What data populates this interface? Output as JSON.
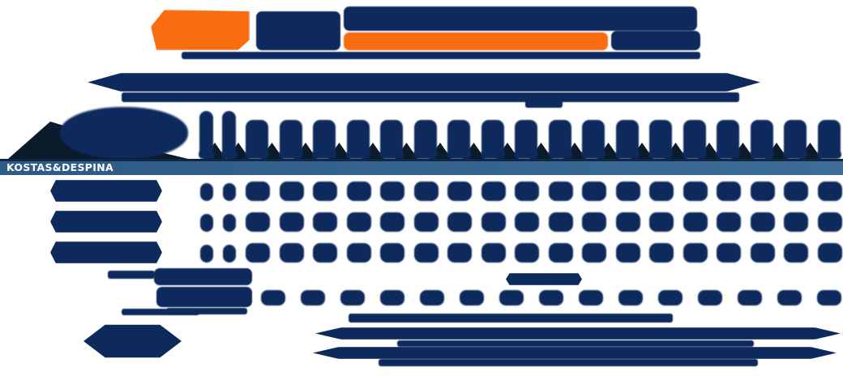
{
  "banner_bar": {
    "label": "KOSTAS&DESPINA",
    "bar_color_left": "#2d5a86",
    "bar_color_right": "#3d6c98",
    "top_border_color": "#0f2740",
    "label_color": "#ffffff"
  },
  "palette": {
    "navy": "#0e2a5c",
    "orange": "#f96c10",
    "silhouette": "#0c1b2b",
    "background": "#ffffff"
  },
  "timetable": {
    "narrow_columns": 2,
    "wide_columns": 18,
    "data_rows": 3,
    "extra_row_cells": 15
  }
}
